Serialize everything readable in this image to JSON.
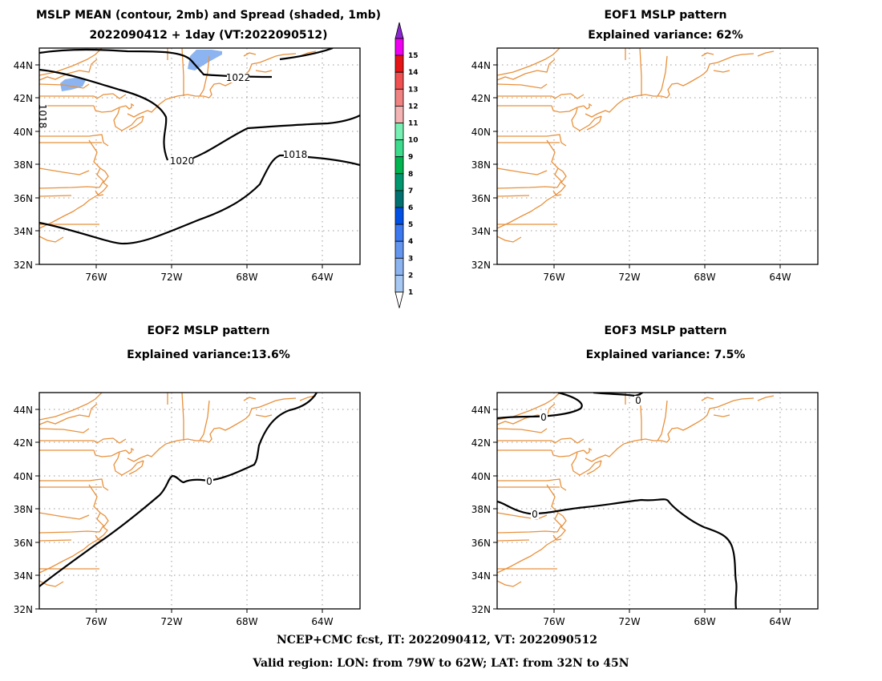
{
  "panels": [
    {
      "title_line1": "MSLP MEAN (contour, 2mb) and Spread (shaded, 1mb)",
      "title_line2": "2022090412 + 1day (VT:2022090512)",
      "contour_labels": [
        "1022",
        "1020",
        "1018",
        "1018"
      ]
    },
    {
      "title_line1": "EOF1 MSLP pattern",
      "title_line2": "Explained variance: 62%",
      "contour_labels": []
    },
    {
      "title_line1": "EOF2 MSLP pattern",
      "title_line2": "Explained variance:13.6%",
      "contour_labels": [
        "0"
      ]
    },
    {
      "title_line1": "EOF3 MSLP pattern",
      "title_line2": "Explained variance: 7.5%",
      "contour_labels": [
        "0",
        "0",
        "0"
      ]
    }
  ],
  "axes": {
    "lon_ticks": [
      "76W",
      "72W",
      "68W",
      "64W"
    ],
    "lat_ticks": [
      "44N",
      "42N",
      "40N",
      "38N",
      "36N",
      "34N",
      "32N"
    ],
    "lon_range": [
      -79,
      -62
    ],
    "lat_range": [
      32,
      45
    ]
  },
  "colorbar": {
    "labels": [
      "1",
      "2",
      "3",
      "4",
      "5",
      "6",
      "7",
      "8",
      "9",
      "10",
      "11",
      "12",
      "13",
      "14",
      "15"
    ],
    "colors": [
      "#a6c8f2",
      "#8cb4f0",
      "#6496f0",
      "#3c78f0",
      "#0050e6",
      "#007070",
      "#00966e",
      "#00b450",
      "#3cdc8c",
      "#78f0b4",
      "#f5b4b4",
      "#f08282",
      "#f05050",
      "#e61414",
      "#f000f0"
    ],
    "top_arrow_color": "#8c28d2"
  },
  "colors": {
    "coastline": "#e8913c",
    "contour": "#000000",
    "spread_shade": "#8cb4f0",
    "grid": "#999999"
  },
  "footer": {
    "line1": "NCEP+CMC fcst, IT: 2022090412, VT: 2022090512",
    "line2": "Valid region: LON: from 79W to 62W; LAT: from 32N to 45N"
  }
}
